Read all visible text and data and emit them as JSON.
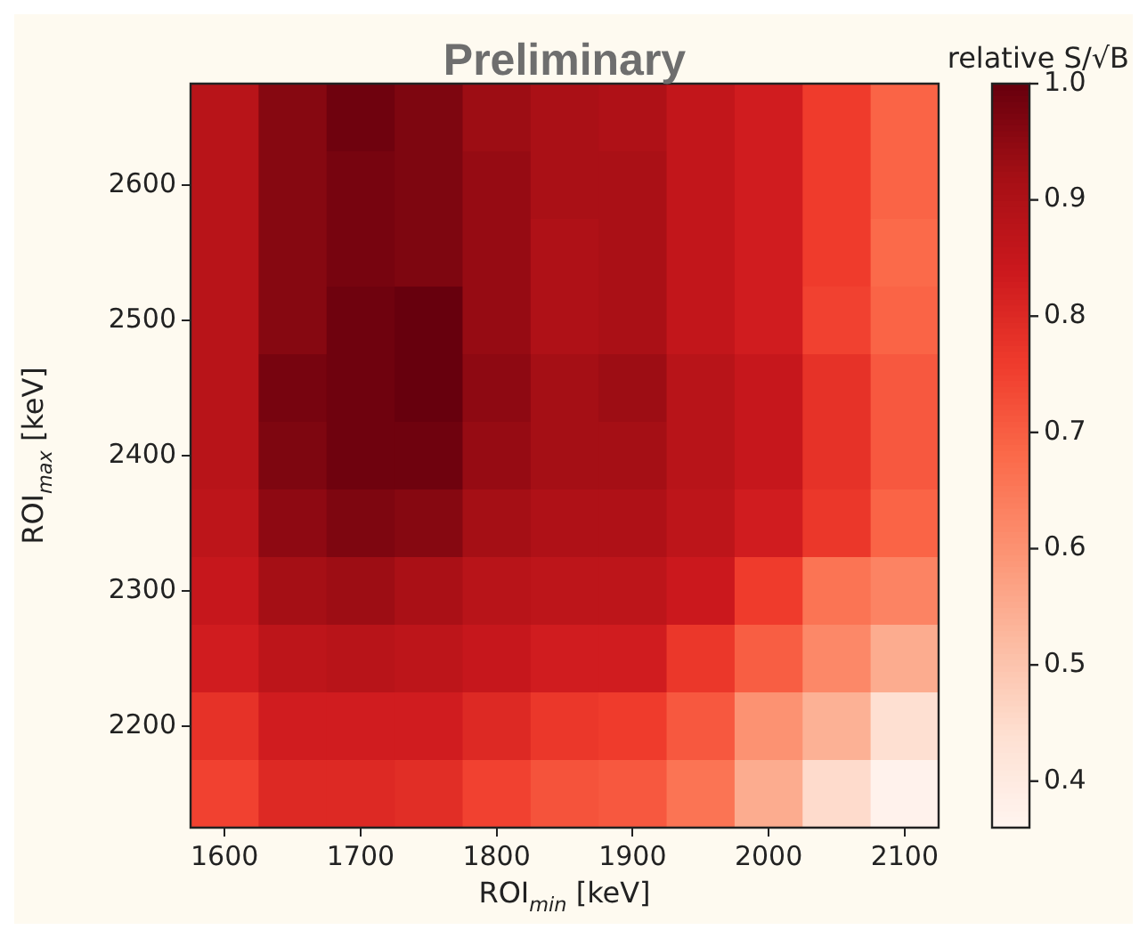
{
  "chart_data": {
    "type": "heatmap",
    "title": "Preliminary",
    "xlabel": "ROI$_{min}$ [keV]",
    "ylabel": "ROI$_{max}$ [keV]",
    "clabel": "relative S/√B",
    "categories": [
      "1600",
      null,
      "1700",
      null,
      "1800",
      null,
      "1900",
      null,
      "2000",
      null,
      "2100"
    ],
    "y_categories": [
      null,
      "2600",
      null,
      "2500",
      null,
      "2400",
      null,
      "2300",
      null,
      "2200",
      null
    ],
    "cells": [
      [
        0.88,
        0.96,
        0.99,
        0.97,
        0.93,
        0.91,
        0.9,
        0.86,
        0.83,
        0.76,
        0.69
      ],
      [
        0.88,
        0.96,
        0.98,
        0.97,
        0.94,
        0.91,
        0.91,
        0.86,
        0.83,
        0.76,
        0.69
      ],
      [
        0.88,
        0.96,
        0.98,
        0.97,
        0.94,
        0.9,
        0.91,
        0.86,
        0.83,
        0.76,
        0.68
      ],
      [
        0.88,
        0.96,
        0.99,
        1.0,
        0.94,
        0.9,
        0.91,
        0.86,
        0.83,
        0.75,
        0.69
      ],
      [
        0.88,
        0.98,
        0.99,
        1.0,
        0.95,
        0.92,
        0.93,
        0.88,
        0.85,
        0.78,
        0.71
      ],
      [
        0.88,
        0.97,
        0.99,
        0.99,
        0.94,
        0.92,
        0.92,
        0.88,
        0.85,
        0.78,
        0.71
      ],
      [
        0.87,
        0.95,
        0.97,
        0.96,
        0.92,
        0.9,
        0.9,
        0.87,
        0.83,
        0.77,
        0.69
      ],
      [
        0.85,
        0.92,
        0.93,
        0.91,
        0.88,
        0.87,
        0.87,
        0.84,
        0.76,
        0.66,
        0.63
      ],
      [
        0.83,
        0.87,
        0.88,
        0.87,
        0.85,
        0.83,
        0.83,
        0.77,
        0.7,
        0.62,
        0.55
      ],
      [
        0.78,
        0.83,
        0.83,
        0.83,
        0.8,
        0.77,
        0.76,
        0.71,
        0.6,
        0.54,
        0.44
      ],
      [
        0.75,
        0.8,
        0.8,
        0.79,
        0.75,
        0.72,
        0.71,
        0.66,
        0.55,
        0.45,
        0.37
      ]
    ],
    "clim": [
      0.36,
      1.0
    ],
    "cticks": [
      0.4,
      0.5,
      0.6,
      0.7,
      0.8,
      0.9,
      {
        "value": 1.0,
        "label": "1.0"
      }
    ]
  }
}
